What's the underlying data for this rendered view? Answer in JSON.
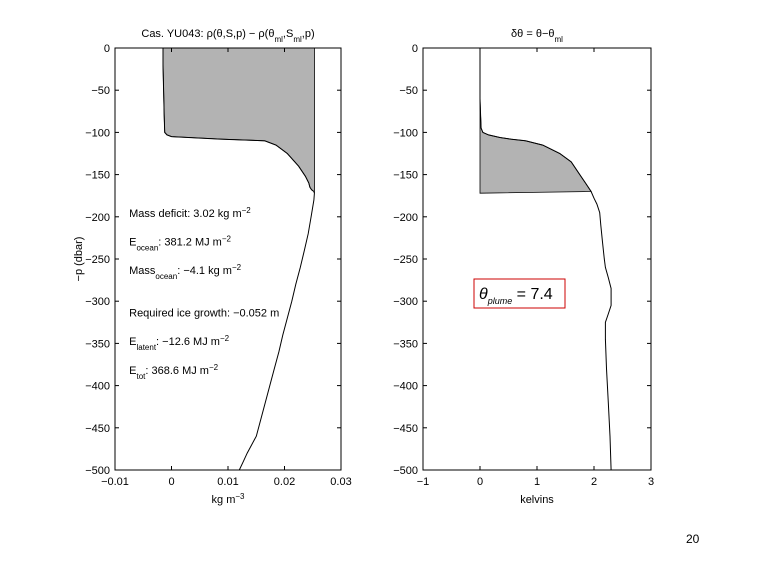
{
  "page_number": "20",
  "ylabel": "−p (dbar)",
  "chart_data": [
    {
      "type": "area",
      "title": "Cas. YU043: ρ(θ,S,p) − ρ(θ_ml,S_ml,p)",
      "title_parts": {
        "pre": "Cas. YU043: ρ(θ,S,p) − ρ(θ",
        "sub1": "ml",
        "mid": ",S",
        "sub2": "ml",
        "post": ",p)"
      },
      "xlabel": "kg m^-3",
      "xlabel_parts": {
        "base": "kg m",
        "sup": "−3"
      },
      "ylabel": "−p (dbar)",
      "xlim": [
        -0.01,
        0.03
      ],
      "ylim": [
        -500,
        0
      ],
      "xticks": [
        -0.01,
        0,
        0.01,
        0.02,
        0.03
      ],
      "xtick_labels": [
        "−0.01",
        "0",
        "0.01",
        "0.02",
        "0.03"
      ],
      "yticks": [
        0,
        -50,
        -100,
        -150,
        -200,
        -250,
        -300,
        -350,
        -400,
        -450,
        -500
      ],
      "ytick_labels": [
        "0",
        "−50",
        "−100",
        "−150",
        "−200",
        "−250",
        "−300",
        "−350",
        "−400",
        "−450",
        "−500"
      ],
      "reference_value": 0.0253,
      "profile": {
        "x": [
          -0.0015,
          -0.0015,
          -0.0014,
          -0.0013,
          -0.0012,
          -0.0008,
          0.0,
          0.009,
          0.0165,
          0.0185,
          0.0205,
          0.0225,
          0.0237,
          0.0243,
          0.0245,
          0.0248,
          0.0252,
          0.0253,
          0.0252,
          0.0247,
          0.0242,
          0.0235,
          0.0228,
          0.022,
          0.0213,
          0.0205,
          0.0197,
          0.019,
          0.0182,
          0.0174,
          0.0166,
          0.0158,
          0.015,
          0.0142,
          0.0134,
          0.0127,
          0.012
        ],
        "y": [
          0,
          -20,
          -50,
          -80,
          -100,
          -103,
          -105,
          -108,
          -110,
          -115,
          -125,
          -140,
          -152,
          -160,
          -165,
          -168,
          -170,
          -172,
          -180,
          -200,
          -220,
          -240,
          -260,
          -280,
          -300,
          -320,
          -340,
          -360,
          -380,
          -400,
          -420,
          -440,
          -460,
          -470,
          -480,
          -490,
          -500
        ]
      },
      "shaded_region": {
        "y_range": [
          0,
          -172
        ],
        "between": "profile and reference_value",
        "color": "#b3b3b3"
      },
      "annotations": [
        {
          "parts": [
            {
              "t": "Mass deficit: 3.02 kg m"
            },
            {
              "t": "−2",
              "sup": true
            }
          ],
          "at": [
            -0.0075,
            -200
          ]
        },
        {
          "parts": [
            {
              "t": "E"
            },
            {
              "t": "ocean",
              "sub": true
            },
            {
              "t": ": 381.2 MJ m"
            },
            {
              "t": "−2",
              "sup": true
            }
          ],
          "at": [
            -0.0075,
            -234
          ]
        },
        {
          "parts": [
            {
              "t": "Mass"
            },
            {
              "t": "ocean",
              "sub": true
            },
            {
              "t": ": −4.1 kg m"
            },
            {
              "t": "−2",
              "sup": true
            }
          ],
          "at": [
            -0.0075,
            -268
          ]
        },
        {
          "parts": [
            {
              "t": "Required ice growth: −0.052 m"
            }
          ],
          "at": [
            -0.0075,
            -318
          ]
        },
        {
          "parts": [
            {
              "t": "E"
            },
            {
              "t": "latent",
              "sub": true
            },
            {
              "t": ": −12.6 MJ m"
            },
            {
              "t": "−2",
              "sup": true
            }
          ],
          "at": [
            -0.0075,
            -352
          ]
        },
        {
          "parts": [
            {
              "t": "E"
            },
            {
              "t": "tot",
              "sub": true
            },
            {
              "t": ": 368.6 MJ m"
            },
            {
              "t": "−2",
              "sup": true
            }
          ],
          "at": [
            -0.0075,
            -386
          ]
        }
      ]
    },
    {
      "type": "area",
      "title": "δθ = θ−θ_ml",
      "title_parts": {
        "pre": "δθ = θ−θ",
        "sub1": "ml"
      },
      "xlabel": "kelvins",
      "xlim": [
        -1,
        3
      ],
      "ylim": [
        -500,
        0
      ],
      "xticks": [
        -1,
        0,
        1,
        2,
        3
      ],
      "xtick_labels": [
        "−1",
        "0",
        "1",
        "2",
        "3"
      ],
      "yticks": [
        0,
        -50,
        -100,
        -150,
        -200,
        -250,
        -300,
        -350,
        -400,
        -450,
        -500
      ],
      "ytick_labels": [
        "0",
        "−50",
        "−100",
        "−150",
        "−200",
        "−250",
        "−300",
        "−350",
        "−400",
        "−450",
        "−500"
      ],
      "profile": {
        "x": [
          0.0,
          0.0,
          0.0,
          0.01,
          0.02,
          0.05,
          0.15,
          0.35,
          0.55,
          0.8,
          1.1,
          1.4,
          1.6,
          1.75,
          1.85,
          1.95,
          2.0,
          2.05,
          2.1,
          2.12,
          2.15,
          2.18,
          2.2,
          2.25,
          2.3,
          2.3,
          2.25,
          2.2,
          2.2,
          2.22,
          2.25,
          2.28,
          2.3
        ],
        "y": [
          0,
          -30,
          -60,
          -80,
          -95,
          -100,
          -103,
          -106,
          -108,
          -110,
          -115,
          -125,
          -135,
          -150,
          -160,
          -170,
          -178,
          -185,
          -195,
          -210,
          -230,
          -250,
          -260,
          -272,
          -285,
          -305,
          -315,
          -325,
          -345,
          -380,
          -420,
          -460,
          -500
        ]
      },
      "shaded_region": {
        "y_range": [
          0,
          -172
        ],
        "between": "profile and x=0",
        "color": "#b3b3b3"
      },
      "legend_box": {
        "symbol": "θ",
        "subscript": "plume",
        "value_text": "= 7.4",
        "border_color": "#cc0000"
      }
    }
  ]
}
